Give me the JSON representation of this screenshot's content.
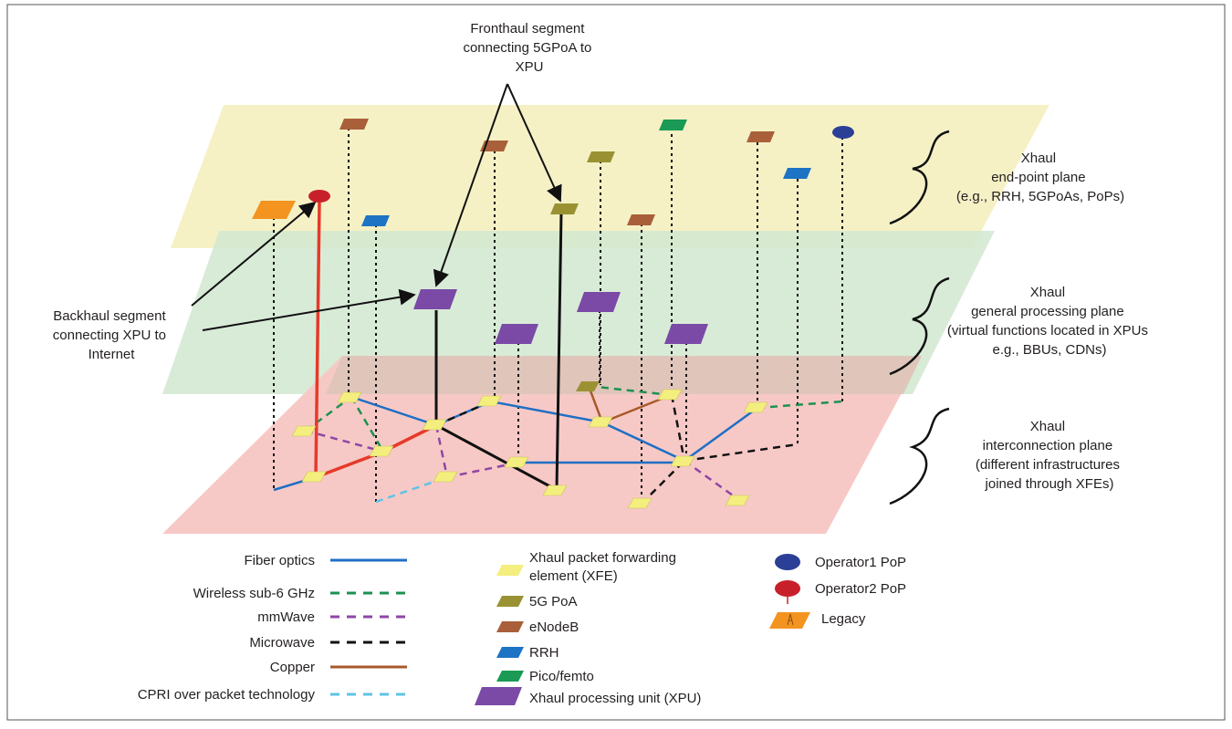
{
  "annotations": {
    "fronthaul": [
      "Fronthaul segment",
      "connecting 5GPoA to",
      "XPU"
    ],
    "backhaul": [
      "Backhaul segment",
      "connecting XPU to",
      "Internet"
    ]
  },
  "planes": {
    "endpoint": [
      "Xhaul",
      "end-point plane",
      "(e.g., RRH, 5GPoAs, PoPs)"
    ],
    "processing": [
      "Xhaul",
      "general processing plane",
      "(virtual functions located in XPUs",
      "e.g., BBUs, CDNs)"
    ],
    "interconnection": [
      "Xhaul",
      "interconnection plane",
      "(different infrastructures",
      "joined through XFEs)"
    ]
  },
  "legend": {
    "links": [
      {
        "label": "Fiber optics",
        "color": "#1f6fc4",
        "dash": "solid"
      },
      {
        "label": "Wireless sub-6 GHz",
        "color": "#1c9150",
        "dash": "dashed"
      },
      {
        "label": "mmWave",
        "color": "#8e46a6",
        "dash": "dashed"
      },
      {
        "label": "Microwave",
        "color": "#111111",
        "dash": "dashed"
      },
      {
        "label": "Copper",
        "color": "#a85a2c",
        "dash": "solid"
      },
      {
        "label": "CPRI over packet technology",
        "color": "#5fc3e4",
        "dash": "dashed"
      }
    ],
    "nodes": [
      {
        "label": [
          "Xhaul packet forwarding",
          "element (XFE)"
        ],
        "color": "#f3ee7e"
      },
      {
        "label": [
          "5G PoA"
        ],
        "color": "#9a9232"
      },
      {
        "label": [
          "eNodeB"
        ],
        "color": "#a9603a"
      },
      {
        "label": [
          "RRH"
        ],
        "color": "#1d73c4"
      },
      {
        "label": [
          "Pico/femto"
        ],
        "color": "#1a9a54"
      },
      {
        "label": [
          "Xhaul processing unit (XPU)"
        ],
        "color": "#7a4aa6"
      }
    ],
    "pops": [
      {
        "label": "Operator1 PoP",
        "color": "#2b3f96",
        "icon": "ellipse"
      },
      {
        "label": "Operator2 PoP",
        "color": "#c8202a",
        "icon": "ellipse"
      },
      {
        "label": "Legacy",
        "color": "#f39420",
        "icon": "legacy-tower"
      }
    ]
  }
}
